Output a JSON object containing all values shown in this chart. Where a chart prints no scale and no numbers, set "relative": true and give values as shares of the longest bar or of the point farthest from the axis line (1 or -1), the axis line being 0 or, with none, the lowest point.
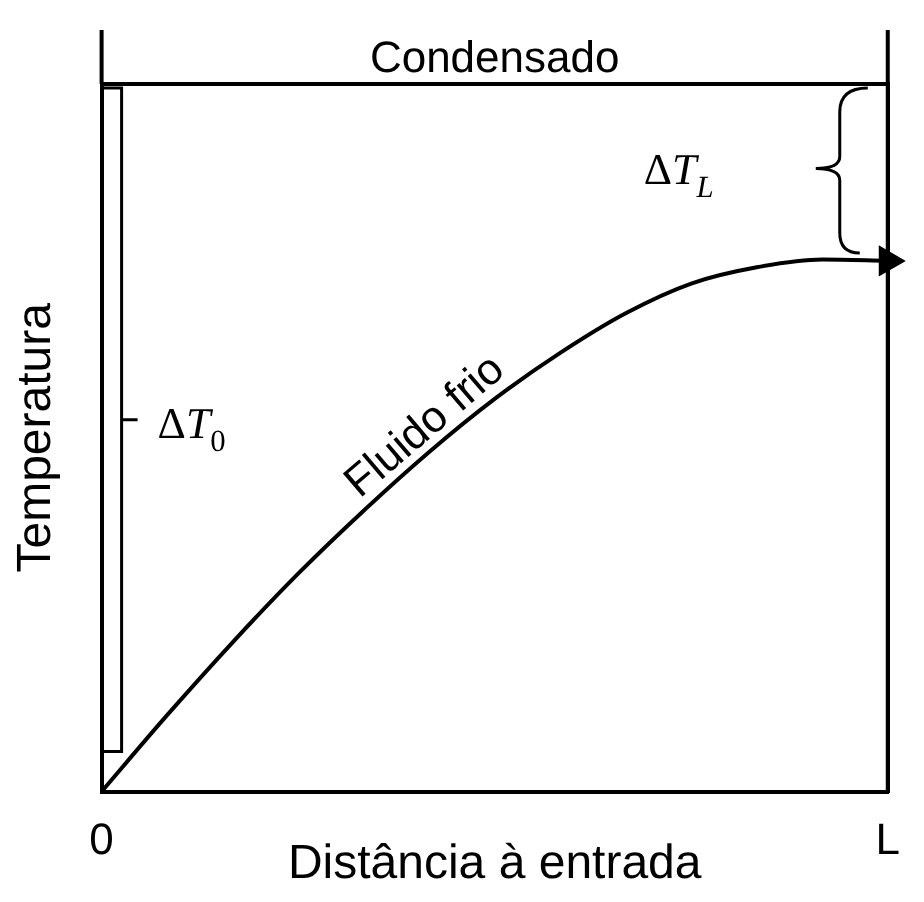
{
  "chart_data": {
    "type": "line",
    "relative": true,
    "xlabel": "Distância à entrada",
    "ylabel": "Temperatura",
    "legend": false,
    "marker": "none",
    "line_style": "solid",
    "categories": [
      "0",
      null,
      null,
      null,
      null,
      null,
      null,
      null,
      null,
      null,
      null,
      null,
      "L"
    ],
    "series": [
      {
        "name": "Condensado",
        "color": "#000000",
        "values": [
          1,
          1,
          1,
          1,
          1,
          1,
          1,
          1,
          1,
          1,
          1,
          1,
          1
        ]
      },
      {
        "name": "Fluido frio",
        "color": "#000000",
        "values": [
          0,
          0.108,
          0.211,
          0.308,
          0.397,
          0.48,
          0.555,
          0.62,
          0.676,
          0.718,
          0.741,
          0.752,
          0.75
        ]
      }
    ],
    "annotations": [
      "ΔT$_{0}$",
      "ΔT$_{L}$"
    ]
  }
}
